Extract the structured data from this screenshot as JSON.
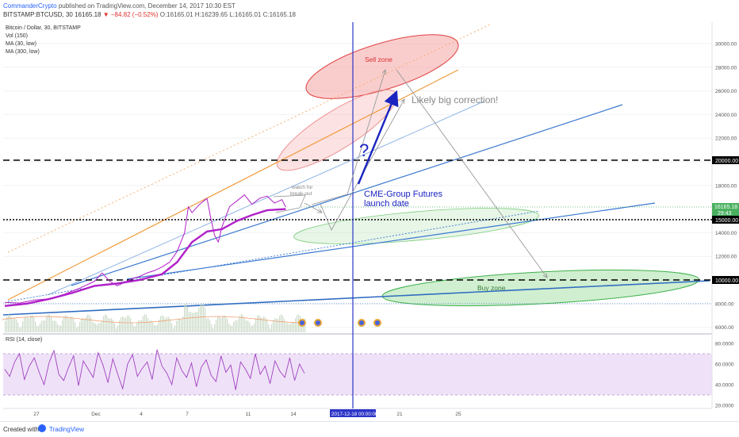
{
  "header": {
    "author": "CommanderCrypto",
    "published_text": "published on TradingView.com, December 14, 2017 10:30 EST",
    "symbol_line": "BITSTAMP:BTCUSD, 30",
    "last": "16165.18",
    "change": "−84.82 (−0.52%)",
    "ohlc": "O:16165.01 H:16239.65 L:16165.01 C:16165.18"
  },
  "legend": {
    "series_title": "Bitcoin / Dollar, 30, BITSTAMP",
    "vol": "Vol (150)",
    "ma30": "MA (30, low)",
    "ma300": "MA (300, low)",
    "rsi": "RSI (14, close)"
  },
  "annotations": {
    "sell_zone": "Sell zone",
    "buy_zone": "Buy zone",
    "correction": "Likely big correction!",
    "question": "?",
    "breakout_1": "watch for",
    "breakout_2": "break-out",
    "futures_1": "CME-Group Futures",
    "futures_2": "launch date"
  },
  "footer": {
    "created_with": "Created with",
    "brand": "TradingView"
  },
  "colors": {
    "price": "#b020c8",
    "ma": "#b020c8",
    "sell_zone": "#e04040",
    "buy_zone": "#3cb04a",
    "vertical_line": "#2d35c8",
    "trend": "#3a78d0",
    "orange": "#f09a3c",
    "arrow_blue": "#1a24c0",
    "rsi_band": "#e8d0f4"
  },
  "chart_data": {
    "type": "line",
    "title": "Bitcoin / Dollar, 30, BITSTAMP",
    "price_axis_ticks": [
      "30000.00",
      "28000.00",
      "26000.00",
      "24000.00",
      "22000.00",
      "20000.00",
      "18000.00",
      "14000.00",
      "12000.00",
      "10000.00",
      "8000.00",
      "6000.00"
    ],
    "price_axis_labels": {
      "last": "16165.18",
      "timer": "29:43",
      "level_15000": "15000.00",
      "level_20000": "20000.00",
      "level_10000": "10000.00"
    },
    "rsi_axis_ticks": [
      "80.0000",
      "60.0000",
      "40.0000",
      "20.0000"
    ],
    "x_ticks": [
      "27",
      "Dec",
      "4",
      "7",
      "11",
      "14",
      "21",
      "25"
    ],
    "crosshair_date": "2017-12-18 00:00:00",
    "horizontal_levels": [
      20000,
      15000,
      10000
    ],
    "ylim": [
      6000,
      31500
    ],
    "rsi_band": [
      30,
      70
    ],
    "series": [
      {
        "name": "Bitcoin / Dollar",
        "kind": "price",
        "points": [
          [
            0,
            8100
          ],
          [
            2,
            8050
          ],
          [
            4,
            8300
          ],
          [
            6,
            8400
          ],
          [
            8,
            8800
          ],
          [
            10,
            9300
          ],
          [
            12,
            9900
          ],
          [
            13,
            10600
          ],
          [
            14,
            9900
          ],
          [
            15,
            9500
          ],
          [
            16,
            9800
          ],
          [
            17,
            10100
          ],
          [
            18,
            10300
          ],
          [
            19,
            10600
          ],
          [
            20,
            10800
          ],
          [
            21,
            11100
          ],
          [
            22,
            11500
          ],
          [
            23,
            12400
          ],
          [
            24,
            14000
          ],
          [
            24.5,
            16200
          ],
          [
            25,
            15700
          ],
          [
            26,
            16400
          ],
          [
            27,
            16900
          ],
          [
            27.5,
            15200
          ],
          [
            28,
            13800
          ],
          [
            28.5,
            13200
          ],
          [
            29,
            14500
          ],
          [
            30,
            16200
          ],
          [
            31,
            16700
          ],
          [
            32,
            17200
          ],
          [
            33,
            16400
          ],
          [
            34,
            16900
          ],
          [
            35,
            17100
          ],
          [
            36,
            16500
          ],
          [
            37,
            16800
          ],
          [
            37.5,
            16165
          ]
        ]
      },
      {
        "name": "MA (30, low)",
        "kind": "ma",
        "points": [
          [
            0,
            7800
          ],
          [
            3,
            8000
          ],
          [
            6,
            8400
          ],
          [
            9,
            8900
          ],
          [
            12,
            9500
          ],
          [
            15,
            9700
          ],
          [
            18,
            10000
          ],
          [
            21,
            10500
          ],
          [
            23,
            11500
          ],
          [
            25,
            13200
          ],
          [
            27,
            14100
          ],
          [
            29,
            14300
          ],
          [
            31,
            15000
          ],
          [
            33,
            15500
          ],
          [
            35,
            15900
          ],
          [
            37.5,
            16000
          ]
        ]
      }
    ],
    "rsi_values": [
      55,
      48,
      62,
      70,
      45,
      58,
      66,
      52,
      40,
      61,
      73,
      50,
      44,
      57,
      68,
      39,
      63,
      55,
      47,
      71,
      59,
      42,
      65,
      50,
      36,
      60,
      69,
      48,
      56,
      62,
      45,
      74,
      58,
      51,
      40,
      66,
      54,
      47,
      61,
      38,
      57,
      64,
      49,
      43,
      68,
      52,
      59,
      35,
      62,
      55,
      46,
      70,
      50,
      58,
      41,
      63,
      53,
      47,
      66,
      44,
      60,
      51
    ]
  }
}
